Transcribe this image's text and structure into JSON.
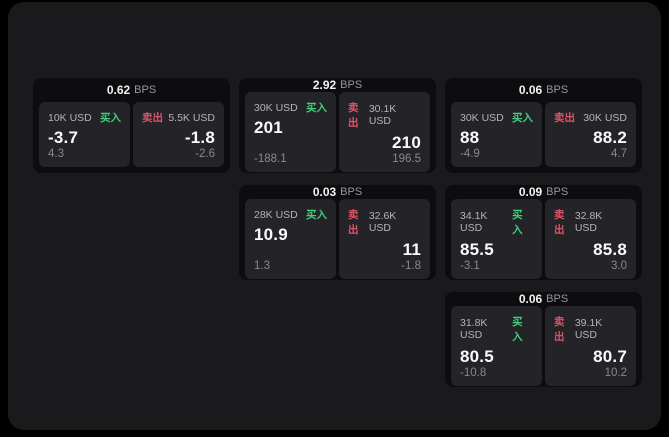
{
  "colors": {
    "page_bg": "#000000",
    "window_bg": "#1a1a1c",
    "card_bg": "#0d0d0f",
    "panel_bg": "#242428",
    "buy_green": "#3ecf7c",
    "sell_red": "#e05266"
  },
  "labels": {
    "bps_unit": "BPS",
    "buy": "买入",
    "sell": "卖出"
  },
  "cards": [
    {
      "bps_value": "0.62",
      "buy": {
        "amount": "10K USD",
        "value": "-3.7",
        "sub": "4.3"
      },
      "sell": {
        "amount": "5.5K USD",
        "value": "-1.8",
        "sub": "-2.6"
      }
    },
    {
      "bps_value": "2.92",
      "buy": {
        "amount": "30K USD",
        "value": "201",
        "sub": "-188.1"
      },
      "sell": {
        "amount": "30.1K USD",
        "value": "210",
        "sub": "196.5"
      }
    },
    {
      "bps_value": "0.06",
      "buy": {
        "amount": "30K USD",
        "value": "88",
        "sub": "-4.9"
      },
      "sell": {
        "amount": "30K USD",
        "value": "88.2",
        "sub": "4.7"
      }
    },
    {
      "bps_value": "0.03",
      "buy": {
        "amount": "28K USD",
        "value": "10.9",
        "sub": "1.3"
      },
      "sell": {
        "amount": "32.6K USD",
        "value": "11",
        "sub": "-1.8"
      }
    },
    {
      "bps_value": "0.09",
      "buy": {
        "amount": "34.1K USD",
        "value": "85.5",
        "sub": "-3.1"
      },
      "sell": {
        "amount": "32.8K USD",
        "value": "85.8",
        "sub": "3.0"
      }
    },
    {
      "bps_value": "0.06",
      "buy": {
        "amount": "31.8K USD",
        "value": "80.5",
        "sub": "-10.8"
      },
      "sell": {
        "amount": "39.1K USD",
        "value": "80.7",
        "sub": "10.2"
      }
    }
  ]
}
